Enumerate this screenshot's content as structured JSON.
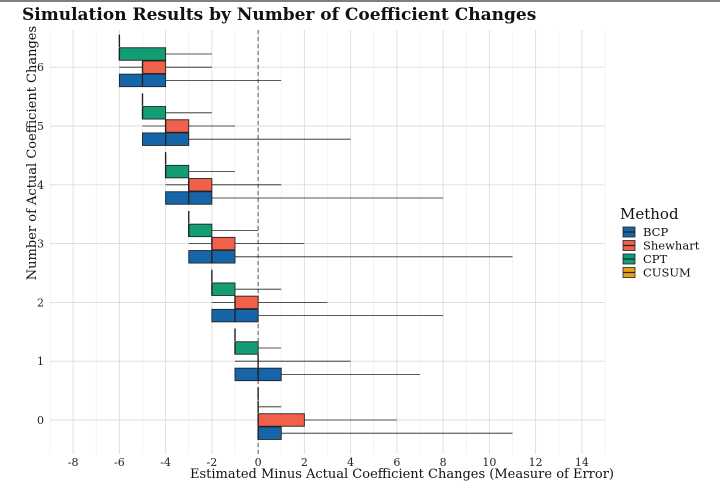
{
  "chart_data": {
    "type": "boxplot",
    "title": "Simulation Results by Number of Coefficient Changes",
    "xlabel": "Estimated Minus Actual Coefficient Changes (Measure of Error)",
    "ylabel": "Number of Actual Coefficient Changes",
    "xlim": [
      -9,
      15
    ],
    "x_ticks": [
      -8,
      -6,
      -4,
      -2,
      0,
      2,
      4,
      6,
      8,
      10,
      12,
      14
    ],
    "categories": [
      "0",
      "1",
      "2",
      "3",
      "4",
      "5",
      "6"
    ],
    "grid": true,
    "reference_line": 0,
    "legend": {
      "title": "Method",
      "placement": "right",
      "entries": [
        "BCP",
        "Shewhart",
        "CPT",
        "CUSUM"
      ]
    },
    "series": [
      {
        "name": "BCP",
        "color": "#1565a8",
        "boxes": [
          {
            "category": "0",
            "whisker_low": 0,
            "q1": 0,
            "median": 0,
            "q3": 1,
            "whisker_high": 11
          },
          {
            "category": "1",
            "whisker_low": -1,
            "q1": -1,
            "median": 0,
            "q3": 1,
            "whisker_high": 7
          },
          {
            "category": "2",
            "whisker_low": -2,
            "q1": -2,
            "median": -1,
            "q3": 0,
            "whisker_high": 8
          },
          {
            "category": "3",
            "whisker_low": -3,
            "q1": -3,
            "median": -2,
            "q3": -1,
            "whisker_high": 11
          },
          {
            "category": "4",
            "whisker_low": -4,
            "q1": -4,
            "median": -3,
            "q3": -2,
            "whisker_high": 8
          },
          {
            "category": "5",
            "whisker_low": -5,
            "q1": -5,
            "median": -4,
            "q3": -3,
            "whisker_high": 4
          },
          {
            "category": "6",
            "whisker_low": -6,
            "q1": -6,
            "median": -5,
            "q3": -4,
            "whisker_high": 1
          }
        ]
      },
      {
        "name": "Shewhart",
        "color": "#f0604a",
        "boxes": [
          {
            "category": "0",
            "whisker_low": 0,
            "q1": 0,
            "median": 0,
            "q3": 2,
            "whisker_high": 6
          },
          {
            "category": "1",
            "whisker_low": -1,
            "q1": 0,
            "median": 0,
            "q3": 0,
            "whisker_high": 4
          },
          {
            "category": "2",
            "whisker_low": -2,
            "q1": -1,
            "median": -1,
            "q3": 0,
            "whisker_high": 3
          },
          {
            "category": "3",
            "whisker_low": -3,
            "q1": -2,
            "median": -2,
            "q3": -1,
            "whisker_high": 2
          },
          {
            "category": "4",
            "whisker_low": -4,
            "q1": -3,
            "median": -3,
            "q3": -2,
            "whisker_high": 1
          },
          {
            "category": "5",
            "whisker_low": -5,
            "q1": -4,
            "median": -4,
            "q3": -3,
            "whisker_high": -1
          },
          {
            "category": "6",
            "whisker_low": -6,
            "q1": -5,
            "median": -5,
            "q3": -4,
            "whisker_high": -2
          }
        ]
      },
      {
        "name": "CPT",
        "color": "#129d74",
        "boxes": [
          {
            "category": "0",
            "whisker_low": 0,
            "q1": 0,
            "median": 0,
            "q3": 0,
            "whisker_high": 1
          },
          {
            "category": "1",
            "whisker_low": -1,
            "q1": -1,
            "median": -1,
            "q3": 0,
            "whisker_high": 1
          },
          {
            "category": "2",
            "whisker_low": -2,
            "q1": -2,
            "median": -2,
            "q3": -1,
            "whisker_high": 1
          },
          {
            "category": "3",
            "whisker_low": -3,
            "q1": -3,
            "median": -3,
            "q3": -2,
            "whisker_high": 0
          },
          {
            "category": "4",
            "whisker_low": -4,
            "q1": -4,
            "median": -4,
            "q3": -3,
            "whisker_high": -1
          },
          {
            "category": "5",
            "whisker_low": -5,
            "q1": -5,
            "median": -5,
            "q3": -4,
            "whisker_high": -2
          },
          {
            "category": "6",
            "whisker_low": -6,
            "q1": -6,
            "median": -6,
            "q3": -4,
            "whisker_high": -2
          }
        ]
      },
      {
        "name": "CUSUM",
        "color": "#e6a117",
        "boxes": [
          {
            "category": "0",
            "whisker_low": 0,
            "q1": 0,
            "median": 0,
            "q3": 0,
            "whisker_high": 0
          },
          {
            "category": "1",
            "whisker_low": -1,
            "q1": -1,
            "median": -1,
            "q3": -1,
            "whisker_high": -1
          },
          {
            "category": "2",
            "whisker_low": -2,
            "q1": -2,
            "median": -2,
            "q3": -2,
            "whisker_high": -2
          },
          {
            "category": "3",
            "whisker_low": -3,
            "q1": -3,
            "median": -3,
            "q3": -3,
            "whisker_high": -3
          },
          {
            "category": "4",
            "whisker_low": -4,
            "q1": -4,
            "median": -4,
            "q3": -4,
            "whisker_high": -4
          },
          {
            "category": "5",
            "whisker_low": -5,
            "q1": -5,
            "median": -5,
            "q3": -5,
            "whisker_high": -5
          },
          {
            "category": "6",
            "whisker_low": -6,
            "q1": -6,
            "median": -6,
            "q3": -6,
            "whisker_high": -6
          }
        ]
      }
    ]
  }
}
